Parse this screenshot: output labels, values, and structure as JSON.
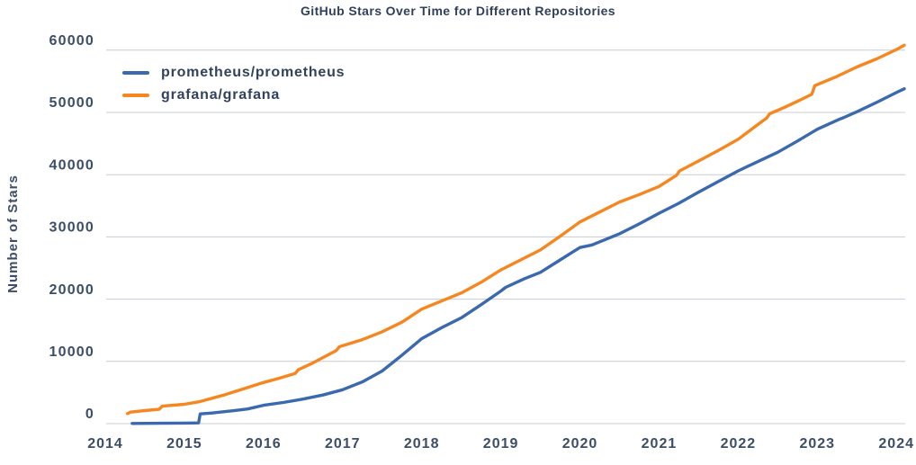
{
  "chart_data": {
    "type": "line",
    "title": "GitHub Stars Over Time for Different Repositories",
    "xlabel": "",
    "ylabel": "Number of Stars",
    "xlim": [
      2014,
      2024.1
    ],
    "ylim": [
      0,
      62300
    ],
    "xticks": [
      2014,
      2015,
      2016,
      2017,
      2018,
      2019,
      2020,
      2021,
      2022,
      2023,
      2024
    ],
    "yticks": [
      0,
      10000,
      20000,
      30000,
      40000,
      50000,
      60000
    ],
    "grid": "horizontal",
    "legend_position": "upper-left-inside",
    "series": [
      {
        "name": "prometheus/prometheus",
        "color": "#3a69af",
        "points": [
          [
            2014.34,
            30
          ],
          [
            2014.7,
            60
          ],
          [
            2015.0,
            90
          ],
          [
            2015.18,
            110
          ],
          [
            2015.2,
            1560
          ],
          [
            2015.35,
            1700
          ],
          [
            2015.6,
            2050
          ],
          [
            2015.8,
            2350
          ],
          [
            2016.0,
            2950
          ],
          [
            2016.25,
            3400
          ],
          [
            2016.5,
            3950
          ],
          [
            2016.75,
            4600
          ],
          [
            2017.0,
            5450
          ],
          [
            2017.25,
            6700
          ],
          [
            2017.5,
            8450
          ],
          [
            2017.75,
            11000
          ],
          [
            2018.0,
            13650
          ],
          [
            2018.25,
            15400
          ],
          [
            2018.5,
            17000
          ],
          [
            2018.75,
            19100
          ],
          [
            2019.0,
            21300
          ],
          [
            2019.06,
            21900
          ],
          [
            2019.3,
            23300
          ],
          [
            2019.5,
            24300
          ],
          [
            2019.75,
            26300
          ],
          [
            2020.0,
            28300
          ],
          [
            2020.15,
            28700
          ],
          [
            2020.5,
            30500
          ],
          [
            2020.75,
            32100
          ],
          [
            2021.0,
            33800
          ],
          [
            2021.25,
            35400
          ],
          [
            2021.5,
            37200
          ],
          [
            2021.75,
            38900
          ],
          [
            2022.0,
            40600
          ],
          [
            2022.08,
            41100
          ],
          [
            2022.3,
            42400
          ],
          [
            2022.5,
            43600
          ],
          [
            2022.75,
            45400
          ],
          [
            2023.0,
            47300
          ],
          [
            2023.28,
            48900
          ],
          [
            2023.34,
            49200
          ],
          [
            2023.5,
            50100
          ],
          [
            2023.75,
            51600
          ],
          [
            2024.0,
            53200
          ],
          [
            2024.1,
            53800
          ]
        ]
      },
      {
        "name": "grafana/grafana",
        "color": "#f6861f",
        "points": [
          [
            2014.28,
            1600
          ],
          [
            2014.32,
            1850
          ],
          [
            2014.5,
            2100
          ],
          [
            2014.68,
            2300
          ],
          [
            2014.72,
            2800
          ],
          [
            2015.0,
            3100
          ],
          [
            2015.2,
            3550
          ],
          [
            2015.5,
            4600
          ],
          [
            2015.75,
            5600
          ],
          [
            2016.0,
            6600
          ],
          [
            2016.2,
            7300
          ],
          [
            2016.4,
            8050
          ],
          [
            2016.44,
            8650
          ],
          [
            2016.6,
            9600
          ],
          [
            2016.75,
            10600
          ],
          [
            2016.92,
            11750
          ],
          [
            2016.96,
            12350
          ],
          [
            2017.25,
            13500
          ],
          [
            2017.5,
            14750
          ],
          [
            2017.75,
            16300
          ],
          [
            2018.0,
            18400
          ],
          [
            2018.25,
            19700
          ],
          [
            2018.5,
            21000
          ],
          [
            2018.75,
            22700
          ],
          [
            2019.0,
            24700
          ],
          [
            2019.25,
            26300
          ],
          [
            2019.5,
            27900
          ],
          [
            2019.75,
            30100
          ],
          [
            2020.0,
            32400
          ],
          [
            2020.25,
            34000
          ],
          [
            2020.5,
            35600
          ],
          [
            2020.75,
            36800
          ],
          [
            2021.0,
            38100
          ],
          [
            2021.22,
            39900
          ],
          [
            2021.26,
            40600
          ],
          [
            2021.5,
            42200
          ],
          [
            2021.75,
            43900
          ],
          [
            2022.0,
            45700
          ],
          [
            2022.2,
            47600
          ],
          [
            2022.36,
            49100
          ],
          [
            2022.4,
            49800
          ],
          [
            2022.6,
            50900
          ],
          [
            2022.8,
            52100
          ],
          [
            2022.93,
            52900
          ],
          [
            2022.97,
            54300
          ],
          [
            2023.25,
            55800
          ],
          [
            2023.5,
            57300
          ],
          [
            2023.75,
            58600
          ],
          [
            2024.0,
            60100
          ],
          [
            2024.1,
            60800
          ]
        ]
      }
    ]
  },
  "style": {
    "text_color": "#3c4d68",
    "grid_color": "#c8ccd4",
    "background": "#ffffff"
  }
}
